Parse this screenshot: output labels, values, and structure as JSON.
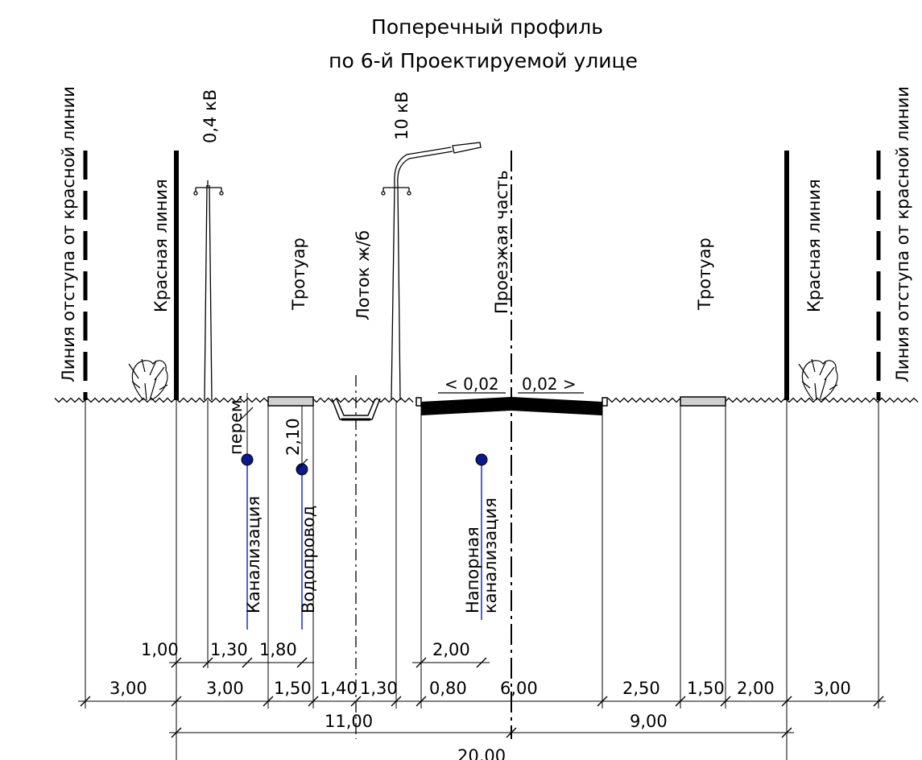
{
  "title": {
    "line1": "Поперечный профиль",
    "line2": "по 6-й Проектируемой улице"
  },
  "labels": {
    "setback_left": "Линия отступа от красной линии",
    "red_line_left": "Красная линия",
    "voltage_04": "0,4 кВ",
    "sidewalk_left": "Тротуар",
    "gutter": "Лоток ж/б",
    "voltage_10": "10 кВ",
    "roadway": "Проезжая часть",
    "sidewalk_right": "Тротуар",
    "red_line_right": "Красная линия",
    "setback_right": "Линия отступа от красной линии"
  },
  "slopes": {
    "left": "< 0,02",
    "right": "0,02 >"
  },
  "utilities": {
    "sewer": "Канализация",
    "water": "Водопровод",
    "pressure_sewer_1": "Напорная",
    "pressure_sewer_2": "канализация",
    "variable_depth": "перем.",
    "water_depth": "2,10"
  },
  "dims_row1": [
    "1,00",
    "1,30",
    "1,80",
    "2,00"
  ],
  "dims_row2": [
    "3,00",
    "3,00",
    "1,50",
    "1,40",
    "1,30",
    "0,80",
    "6,00",
    "2,50",
    "1,50",
    "2,00",
    "3,00"
  ],
  "dims_row3": [
    "11,00",
    "9,00"
  ],
  "dims_row4": [
    "20,00"
  ],
  "colors": {
    "line": "#000000",
    "pipe": "#0a1a8a",
    "pipe_leader": "#1a2fd0",
    "paving": "#d0d0d0"
  }
}
